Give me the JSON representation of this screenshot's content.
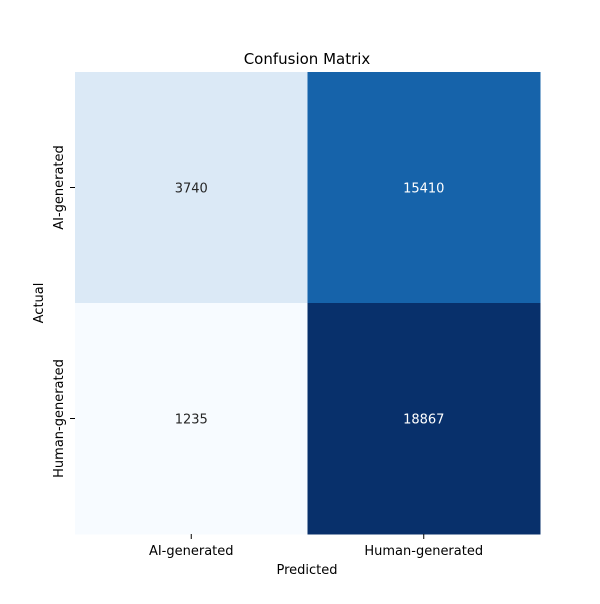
{
  "chart_data": {
    "type": "heatmap",
    "title": "Confusion Matrix",
    "xlabel": "Predicted",
    "ylabel": "Actual",
    "x_categories": [
      "AI-generated",
      "Human-generated"
    ],
    "y_categories": [
      "AI-generated",
      "Human-generated"
    ],
    "values": [
      [
        3740,
        15410
      ],
      [
        1235,
        18867
      ]
    ],
    "colormap": "Blues",
    "color_low": "#f7fbff",
    "color_high": "#08306b",
    "colorbar": false,
    "grid": false
  }
}
